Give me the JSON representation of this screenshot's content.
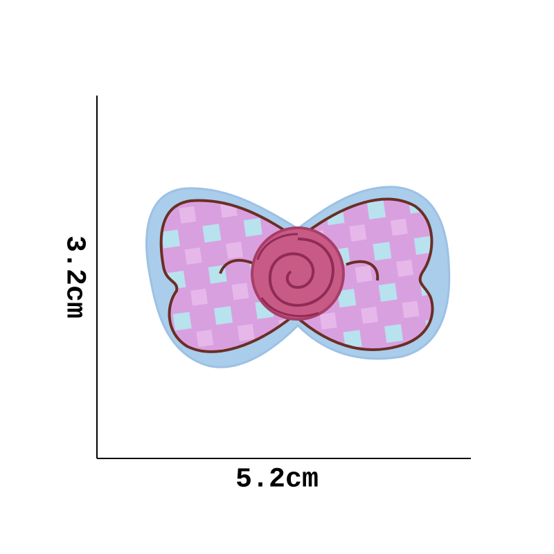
{
  "labels": {
    "height": "3.2cm",
    "width": "5.2cm"
  }
}
